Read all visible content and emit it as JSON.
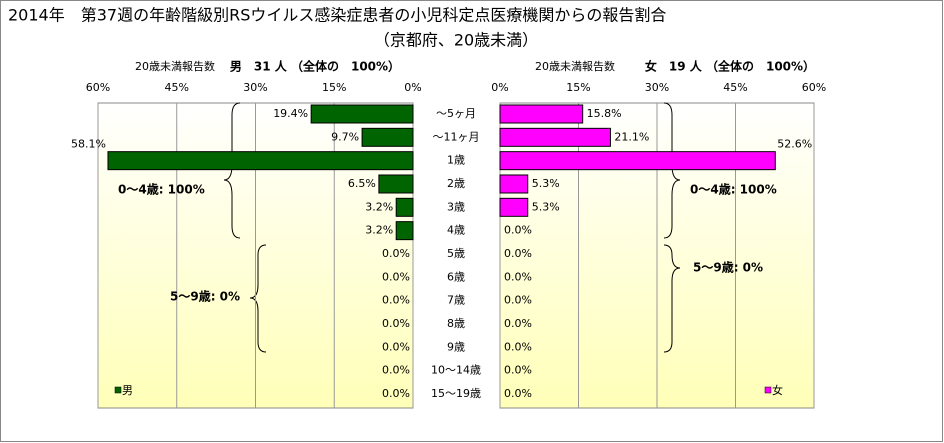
{
  "chart_data": {
    "type": "butterfly",
    "title": "2014年　第37週の年齢階級別RSウイルス感染症患者の小児科定点医療機関からの報告割合",
    "subtitle": "（京都府、20歳未満）",
    "categories": [
      "～5ヶ月",
      "～11ヶ月",
      "1歳",
      "2歳",
      "3歳",
      "4歳",
      "5歳",
      "6歳",
      "7歳",
      "8歳",
      "9歳",
      "10～14歳",
      "15～19歳"
    ],
    "xlim": [
      0,
      60
    ],
    "xticks": [
      {
        "value": 0,
        "label": "0%"
      },
      {
        "value": 15,
        "label": "15%"
      },
      {
        "value": 30,
        "label": "30%"
      },
      {
        "value": 45,
        "label": "45%"
      },
      {
        "value": 60,
        "label": "60%"
      }
    ],
    "grid": true,
    "series": [
      {
        "name": "男",
        "color": "#006400",
        "side": "left",
        "axis_label": "20歳未満報告数",
        "header": "男　31 人 （全体の　100%）",
        "annotations": [
          "0～4歳: 100%",
          "5～9歳: 0%"
        ],
        "values": [
          19.4,
          9.7,
          58.1,
          6.5,
          3.2,
          3.2,
          0,
          0,
          0,
          0,
          0,
          0,
          0
        ],
        "value_labels": [
          "19.4%",
          "9.7%",
          "58.1%",
          "6.5%",
          "3.2%",
          "3.2%",
          "0.0%",
          "0.0%",
          "0.0%",
          "0.0%",
          "0.0%",
          "0.0%",
          "0.0%"
        ]
      },
      {
        "name": "女",
        "color": "#ff00ff",
        "side": "right",
        "axis_label": "20歳未満報告数",
        "header": "女　19 人 （全体の　100%）",
        "annotations": [
          "0～4歳: 100%",
          "5～9歳: 0%"
        ],
        "values": [
          15.8,
          21.1,
          52.6,
          5.3,
          5.3,
          0,
          0,
          0,
          0,
          0,
          0,
          0,
          0
        ],
        "value_labels": [
          "15.8%",
          "21.1%",
          "52.6%",
          "5.3%",
          "5.3%",
          "0.0%",
          "0.0%",
          "0.0%",
          "0.0%",
          "0.0%",
          "0.0%",
          "0.0%",
          "0.0%"
        ]
      }
    ]
  }
}
